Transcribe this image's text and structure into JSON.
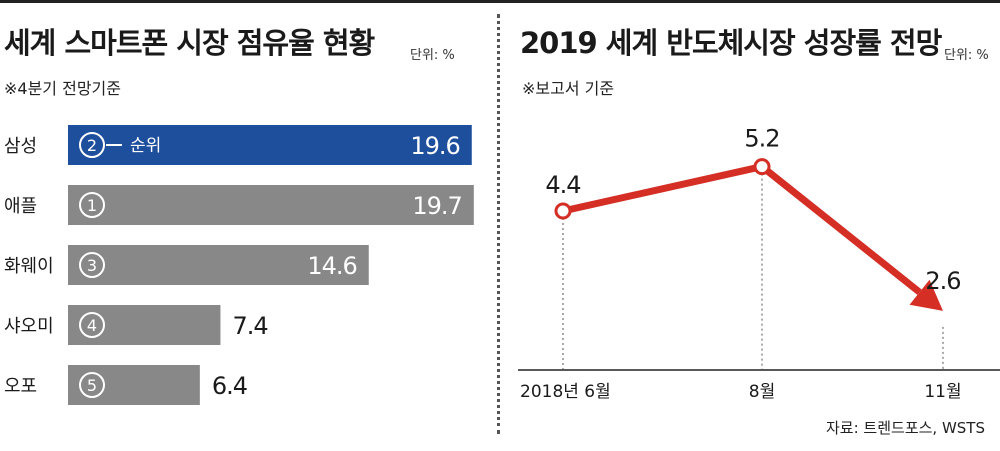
{
  "left": {
    "title": "세계 스마트폰 시장 점유율 현황",
    "unit": "단위: %",
    "note": "※4분기 전망기준",
    "rank_label": "순위"
  },
  "right": {
    "title": "2019 세계 반도체시장 성장률 전망",
    "unit": "단위: %",
    "note": "※보고서 기준",
    "source": "자료: 트렌드포스, WSTS"
  },
  "colors": {
    "highlight": "#1d4f9c",
    "bar": "#888888",
    "line": "#d42e25"
  },
  "chart_data": [
    {
      "type": "bar",
      "orientation": "horizontal",
      "title": "세계 스마트폰 시장 점유율 현황",
      "unit": "단위: %",
      "categories": [
        "삼성",
        "애플",
        "화웨이",
        "샤오미",
        "오포"
      ],
      "values": [
        19.6,
        19.7,
        14.6,
        7.4,
        6.4
      ],
      "value_labels": [
        "19.6",
        "19.7",
        "14.6",
        "7.4",
        "6.4"
      ],
      "ranks": [
        "2",
        "1",
        "3",
        "4",
        "5"
      ],
      "highlight_index": 0
    },
    {
      "type": "line",
      "title": "2019 세계 반도체시장 성장률 전망",
      "unit": "단위: %",
      "x": [
        "2018년 6월",
        "8월",
        "11월"
      ],
      "values": [
        4.4,
        5.2,
        2.6
      ],
      "value_labels": [
        "4.4",
        "5.2",
        "2.6"
      ]
    }
  ]
}
